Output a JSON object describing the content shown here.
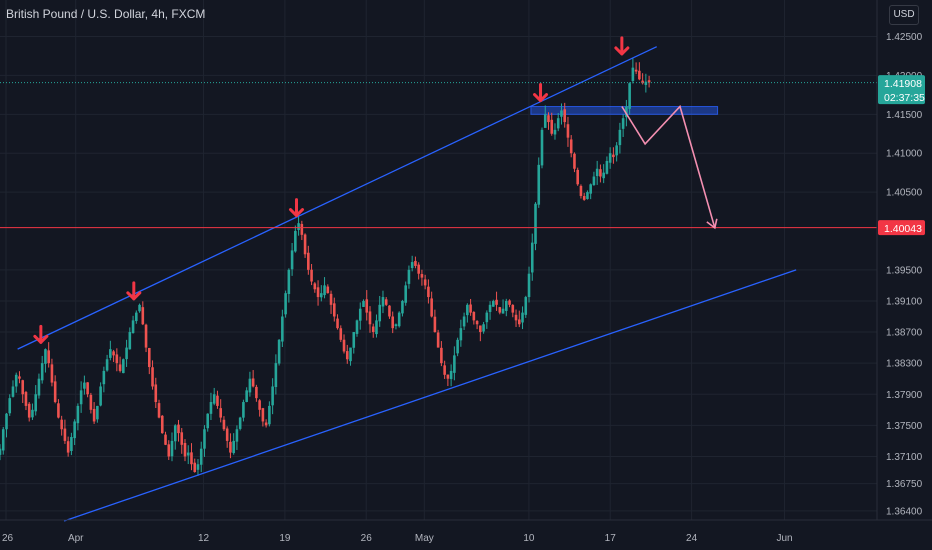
{
  "symbol_title": "British Pound / U.S. Dollar, 4h, FXCM",
  "currency": "USD",
  "last_price": {
    "value": "1.41908",
    "countdown": "02:37:35",
    "color": "#26a69a"
  },
  "horizontal_level": {
    "value": "1.40043",
    "color": "#f23645"
  },
  "colors": {
    "background": "#131722",
    "up": "#26a69a",
    "down": "#ef5350",
    "channel": "#2962ff",
    "projection": "#f48fb1",
    "marker": "#f23645"
  },
  "chart_data": {
    "type": "candlestick",
    "title": "British Pound / U.S. Dollar, 4h, FXCM",
    "x_tick_labels": [
      "26",
      "Apr",
      "12",
      "19",
      "26",
      "May",
      "10",
      "17",
      "24",
      "Jun"
    ],
    "y_tick_labels": [
      "1.42500",
      "1.42000",
      "1.41500",
      "1.41000",
      "1.40500",
      "1.39500",
      "1.39100",
      "1.38700",
      "1.38300",
      "1.37900",
      "1.37500",
      "1.37100",
      "1.36750",
      "1.36400"
    ],
    "ylim": [
      1.3627,
      1.427
    ],
    "last_price": 1.41908,
    "horizontal_line": 1.40043,
    "resistance_zone": [
      1.415,
      1.416
    ],
    "channel_lines": [
      {
        "name": "upper",
        "from": {
          "date": "Mar 27",
          "price": 1.3848
        },
        "to": {
          "date": "May 21",
          "price": 1.4237
        }
      },
      {
        "name": "lower",
        "from": {
          "date": "Mar 31",
          "price": 1.3627
        },
        "to": {
          "date": "Jun 2",
          "price": 1.395
        }
      }
    ],
    "swing_highs": [
      {
        "date": "Mar 29",
        "price": 1.3849
      },
      {
        "date": "Apr 6",
        "price": 1.3905
      },
      {
        "date": "Apr 20",
        "price": 1.4012
      },
      {
        "date": "May 11",
        "price": 1.416
      },
      {
        "date": "May 18",
        "price": 1.422
      }
    ],
    "projected_path": [
      {
        "date": "May 18",
        "price": 1.416
      },
      {
        "date": "May 20",
        "price": 1.4112
      },
      {
        "date": "May 23",
        "price": 1.416
      },
      {
        "date": "May 26",
        "price": 1.4004
      }
    ],
    "closes": [
      1.372,
      1.3745,
      1.3765,
      1.3785,
      1.38,
      1.3815,
      1.381,
      1.379,
      1.3775,
      1.376,
      1.377,
      1.379,
      1.381,
      1.383,
      1.3848,
      1.383,
      1.3805,
      1.378,
      1.376,
      1.3745,
      1.373,
      1.3715,
      1.3735,
      1.3755,
      1.3775,
      1.3795,
      1.3805,
      1.379,
      1.377,
      1.3755,
      1.3775,
      1.38,
      1.382,
      1.3835,
      1.3848,
      1.384,
      1.383,
      1.382,
      1.3835,
      1.385,
      1.387,
      1.3885,
      1.3895,
      1.3905,
      1.388,
      1.385,
      1.3825,
      1.38,
      1.378,
      1.376,
      1.374,
      1.3725,
      1.371,
      1.373,
      1.375,
      1.374,
      1.3725,
      1.371,
      1.3715,
      1.37,
      1.369,
      1.37,
      1.372,
      1.3745,
      1.3765,
      1.378,
      1.379,
      1.3775,
      1.376,
      1.3745,
      1.373,
      1.3715,
      1.373,
      1.3745,
      1.376,
      1.378,
      1.3795,
      1.381,
      1.38,
      1.3785,
      1.377,
      1.3755,
      1.375,
      1.3775,
      1.38,
      1.383,
      1.386,
      1.389,
      1.392,
      1.395,
      1.3975,
      1.4,
      1.401,
      1.3995,
      1.397,
      1.395,
      1.3935,
      1.3925,
      1.3915,
      1.392,
      1.393,
      1.392,
      1.3905,
      1.389,
      1.3875,
      1.386,
      1.3845,
      1.3835,
      1.385,
      1.387,
      1.3885,
      1.39,
      1.391,
      1.3895,
      1.388,
      1.387,
      1.3885,
      1.3905,
      1.3915,
      1.3905,
      1.389,
      1.3875,
      1.388,
      1.3895,
      1.391,
      1.393,
      1.395,
      1.396,
      1.3955,
      1.3945,
      1.394,
      1.393,
      1.3915,
      1.389,
      1.387,
      1.385,
      1.383,
      1.3815,
      1.381,
      1.382,
      1.384,
      1.386,
      1.3875,
      1.389,
      1.3905,
      1.3895,
      1.3885,
      1.388,
      1.387,
      1.388,
      1.3895,
      1.3905,
      1.391,
      1.3905,
      1.3895,
      1.39,
      1.391,
      1.3905,
      1.3895,
      1.3885,
      1.388,
      1.3895,
      1.3915,
      1.3945,
      1.3985,
      1.4035,
      1.4085,
      1.413,
      1.415,
      1.414,
      1.4125,
      1.413,
      1.4145,
      1.4155,
      1.414,
      1.412,
      1.41,
      1.408,
      1.406,
      1.4045,
      1.404,
      1.405,
      1.406,
      1.407,
      1.408,
      1.407,
      1.4075,
      1.409,
      1.41,
      1.4095,
      1.411,
      1.413,
      1.4145,
      1.416,
      1.419,
      1.421,
      1.4205,
      1.4195,
      1.419,
      1.4192,
      1.4191
    ]
  }
}
